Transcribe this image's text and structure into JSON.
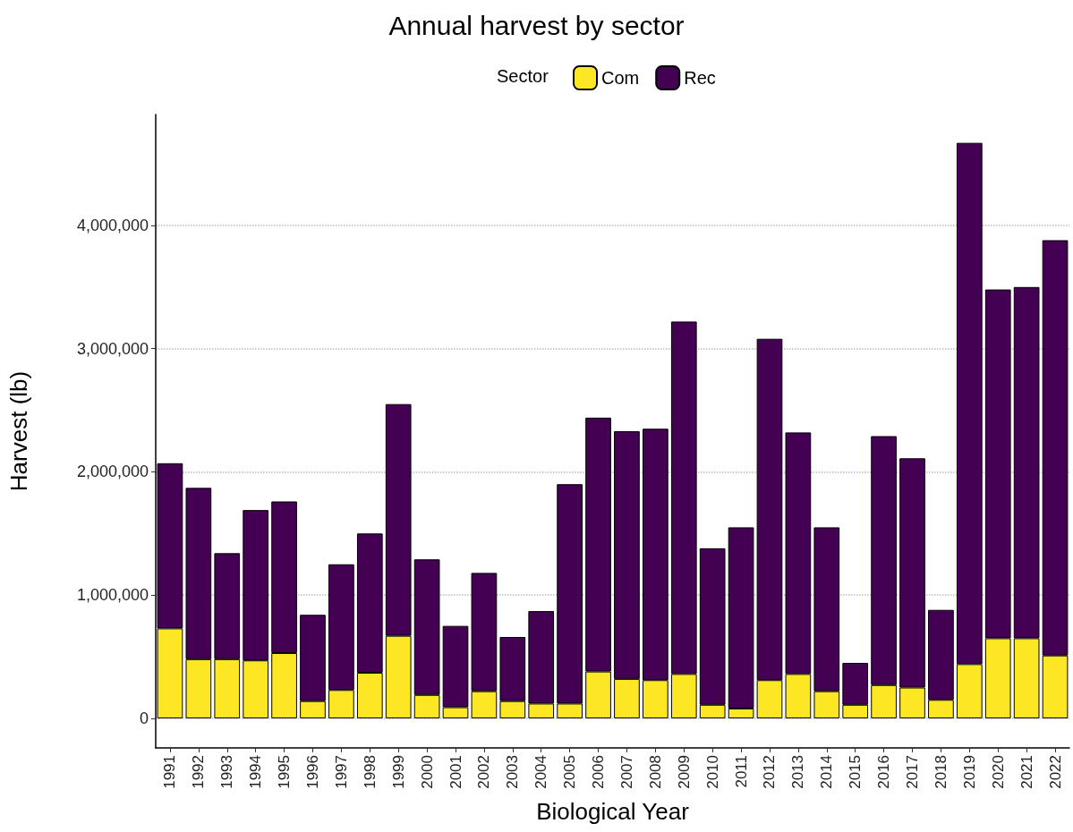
{
  "chart_data": {
    "type": "bar",
    "title": "Annual harvest by sector",
    "xlabel": "Biological Year",
    "ylabel": "Harvest (lb)",
    "legend_title": "Sector",
    "legend": "top",
    "grid": "y",
    "stacked": true,
    "categories": [
      "1991",
      "1992",
      "1993",
      "1994",
      "1995",
      "1996",
      "1997",
      "1998",
      "1999",
      "2000",
      "2001",
      "2002",
      "2003",
      "2004",
      "2005",
      "2006",
      "2007",
      "2008",
      "2009",
      "2010",
      "2011",
      "2012",
      "2013",
      "2014",
      "2015",
      "2016",
      "2017",
      "2018",
      "2019",
      "2020",
      "2021",
      "2022"
    ],
    "series": [
      {
        "name": "Com",
        "color": "#fde725",
        "values": [
          730000,
          480000,
          480000,
          470000,
          530000,
          140000,
          230000,
          370000,
          670000,
          190000,
          90000,
          220000,
          140000,
          120000,
          120000,
          380000,
          320000,
          310000,
          360000,
          110000,
          80000,
          310000,
          360000,
          220000,
          110000,
          270000,
          250000,
          150000,
          440000,
          650000,
          650000,
          510000
        ]
      },
      {
        "name": "Rec",
        "color": "#440154",
        "values": [
          1340000,
          1390000,
          860000,
          1220000,
          1230000,
          700000,
          1020000,
          1130000,
          1880000,
          1100000,
          660000,
          960000,
          520000,
          750000,
          1780000,
          2060000,
          2010000,
          2040000,
          2860000,
          1270000,
          1470000,
          2770000,
          1960000,
          1330000,
          340000,
          2020000,
          1860000,
          730000,
          4230000,
          2830000,
          2850000,
          3370000
        ]
      }
    ],
    "ylim": [
      -240000,
      4900000
    ],
    "yticks": [
      {
        "value": 0,
        "label": "0"
      },
      {
        "value": 1000000,
        "label": "1,000,000"
      },
      {
        "value": 2000000,
        "label": "2,000,000"
      },
      {
        "value": 3000000,
        "label": "3,000,000"
      },
      {
        "value": 4000000,
        "label": "4,000,000"
      }
    ]
  }
}
